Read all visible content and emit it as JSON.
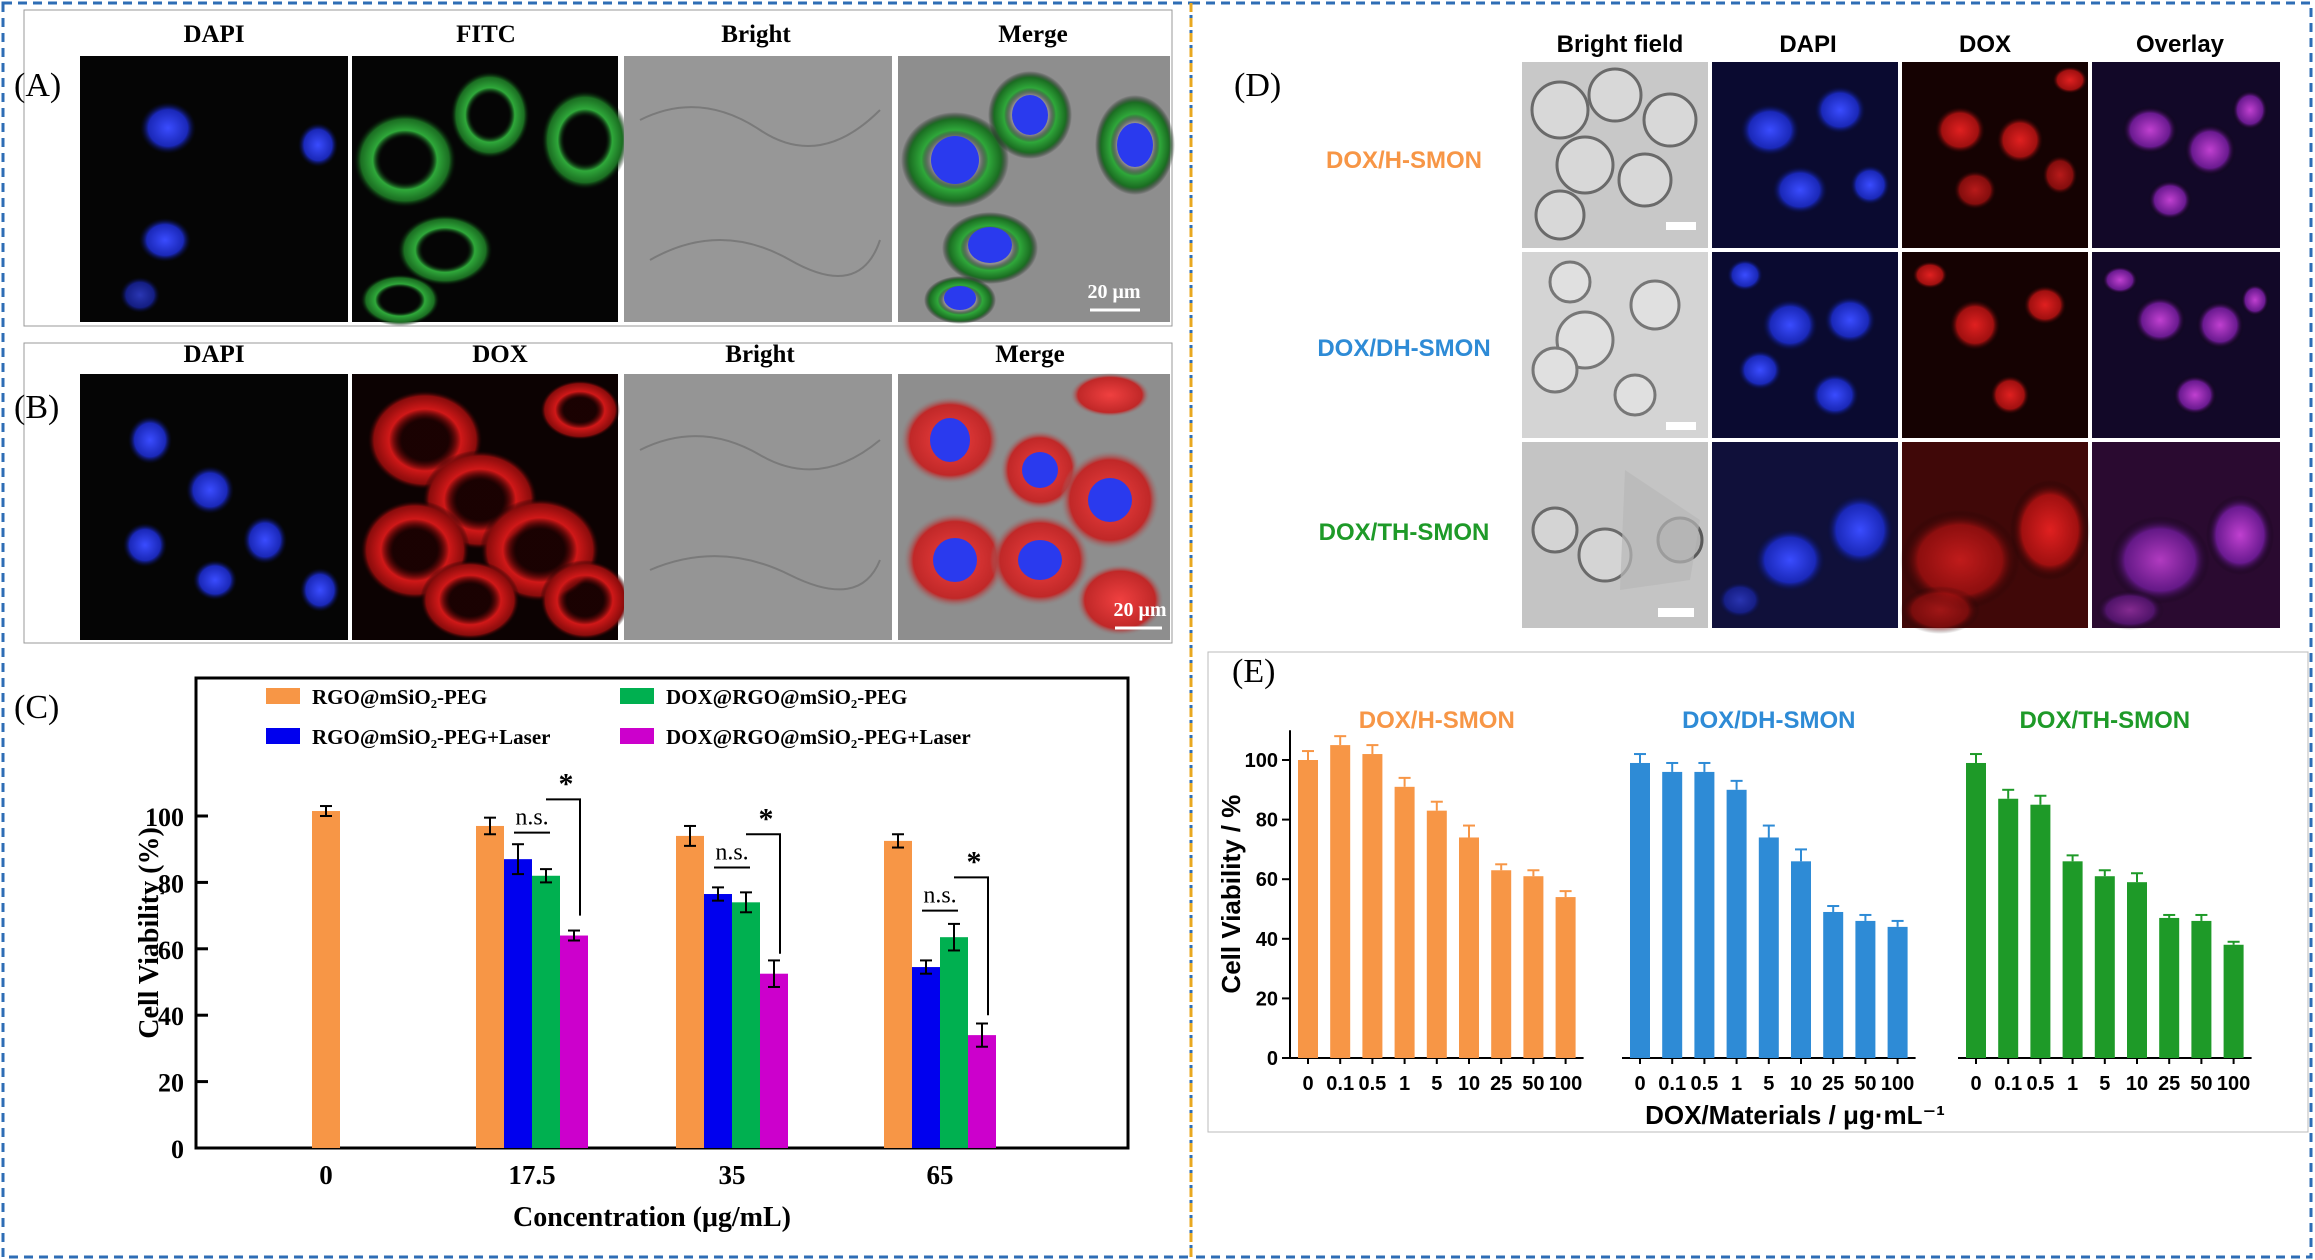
{
  "panels": {
    "A": {
      "label": "(A)",
      "columns": [
        "DAPI",
        "FITC",
        "Bright",
        "Merge"
      ],
      "scale_bar": "20 μm"
    },
    "B": {
      "label": "(B)",
      "columns": [
        "DAPI",
        "DOX",
        "Bright",
        "Merge"
      ],
      "scale_bar": "20 μm"
    },
    "D": {
      "label": "(D)",
      "columns": [
        "Bright field",
        "DAPI",
        "DOX",
        "Overlay"
      ],
      "rows": [
        "DOX/H-SMON",
        "DOX/DH-SMON",
        "DOX/TH-SMON"
      ]
    }
  },
  "chart_data": [
    {
      "panel": "C",
      "label": "(C)",
      "type": "bar",
      "xlabel": "Concentration (μg/mL)",
      "ylabel": "Cell Viability (%)",
      "ylim": [
        0,
        110
      ],
      "yticks": [
        0,
        20,
        40,
        60,
        80,
        100
      ],
      "categories": [
        "0",
        "17.5",
        "35",
        "65"
      ],
      "legend": "top",
      "series": [
        {
          "name": "RGO@mSiO₂-PEG",
          "color": "#f79646",
          "values": [
            101.5,
            97,
            94,
            92.5
          ],
          "errors": [
            1.5,
            2.5,
            3,
            2
          ]
        },
        {
          "name": "RGO@mSiO₂-PEG+Laser",
          "color": "#0000ee",
          "values": [
            null,
            87,
            76.5,
            54.5
          ],
          "errors": [
            null,
            4.5,
            2,
            2
          ]
        },
        {
          "name": "DOX@RGO@mSiO₂-PEG",
          "color": "#00b050",
          "values": [
            null,
            82,
            74,
            63.5
          ],
          "errors": [
            null,
            2,
            3,
            4
          ]
        },
        {
          "name": "DOX@RGO@mSiO₂-PEG+Laser",
          "color": "#cc00cc",
          "values": [
            null,
            64,
            52.5,
            34
          ],
          "errors": [
            null,
            1.5,
            4,
            3.5
          ]
        }
      ],
      "annotations": [
        {
          "category": "17.5",
          "ns": "n.s.",
          "star": "*"
        },
        {
          "category": "35",
          "ns": "n.s.",
          "star": "*"
        },
        {
          "category": "65",
          "ns": "n.s.",
          "star": "*"
        }
      ]
    },
    {
      "panel": "E",
      "label": "(E)",
      "type": "bar",
      "xlabel": "DOX/Materials / μg·mL⁻¹",
      "ylabel": "Cell Viability / %",
      "ylim": [
        0,
        110
      ],
      "yticks": [
        0,
        20,
        40,
        60,
        80,
        100
      ],
      "categories": [
        "0",
        "0.1",
        "0.5",
        "1",
        "5",
        "10",
        "25",
        "50",
        "100"
      ],
      "series": [
        {
          "name": "DOX/H-SMON",
          "color": "#f79646",
          "values": [
            100,
            105,
            102,
            91,
            83,
            74,
            63,
            61,
            54
          ],
          "errors": [
            3,
            3,
            3,
            3,
            3,
            4,
            2,
            2,
            2
          ]
        },
        {
          "name": "DOX/DH-SMON",
          "color": "#2e8bd6",
          "values": [
            99,
            96,
            96,
            90,
            74,
            66,
            49,
            46,
            44
          ],
          "errors": [
            3,
            3,
            3,
            3,
            4,
            4,
            2,
            2,
            2
          ]
        },
        {
          "name": "DOX/TH-SMON",
          "color": "#1e9a28",
          "values": [
            99,
            87,
            85,
            66,
            61,
            59,
            47,
            46,
            38
          ],
          "errors": [
            3,
            3,
            3,
            2,
            2,
            3,
            1,
            2,
            1
          ]
        }
      ]
    }
  ]
}
